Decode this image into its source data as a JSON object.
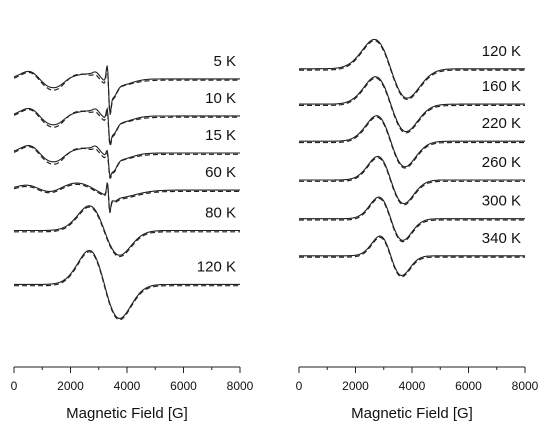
{
  "chart_data": [
    {
      "type": "line",
      "xlabel": "Magnetic Field [G]",
      "ylabel": "",
      "xlim": [
        0,
        8000
      ],
      "xticks": [
        0,
        2000,
        4000,
        6000,
        8000
      ],
      "ylim": [
        0,
        1
      ],
      "grid": false,
      "legend": "none",
      "series": [
        {
          "name": "5 K",
          "baseline": 0.855,
          "profile": "low"
        },
        {
          "name": "10 K",
          "baseline": 0.745,
          "profile": "low"
        },
        {
          "name": "15 K",
          "baseline": 0.635,
          "profile": "low"
        },
        {
          "name": "60 K",
          "baseline": 0.525,
          "profile": "mid"
        },
        {
          "name": "80 K",
          "baseline": 0.405,
          "profile": "wide"
        },
        {
          "name": "120 K",
          "baseline": 0.245,
          "profile": "wide"
        }
      ]
    },
    {
      "type": "line",
      "xlabel": "Magnetic Field [G]",
      "ylabel": "",
      "xlim": [
        0,
        8000
      ],
      "xticks": [
        0,
        2000,
        4000,
        6000,
        8000
      ],
      "ylim": [
        0,
        1
      ],
      "grid": false,
      "legend": "none",
      "series": [
        {
          "name": "120 K",
          "baseline": 0.885
        },
        {
          "name": "160 K",
          "baseline": 0.78
        },
        {
          "name": "220 K",
          "baseline": 0.67
        },
        {
          "name": "260 K",
          "baseline": 0.555
        },
        {
          "name": "300 K",
          "baseline": 0.44
        },
        {
          "name": "340 K",
          "baseline": 0.33
        }
      ]
    }
  ]
}
